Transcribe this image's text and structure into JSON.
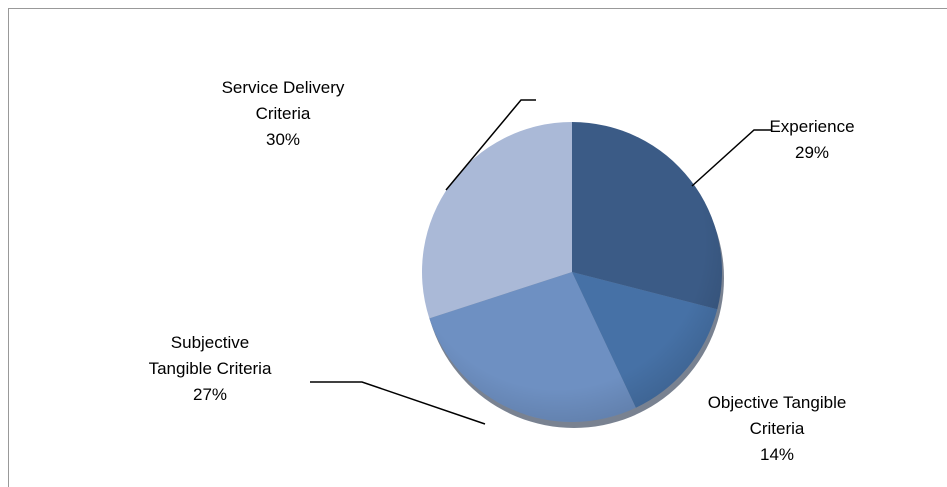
{
  "chart_data": {
    "type": "pie",
    "categories": [
      "Experience",
      "Objective Tangible Criteria",
      "Subjective Tangible Criteria",
      "Service Delivery Criteria"
    ],
    "values": [
      29,
      14,
      27,
      30
    ],
    "value_labels": [
      "29%",
      "14%",
      "27%",
      "30%"
    ],
    "colors": [
      "#3b5b86",
      "#4671a6",
      "#6e90c2",
      "#aab9d7"
    ]
  }
}
